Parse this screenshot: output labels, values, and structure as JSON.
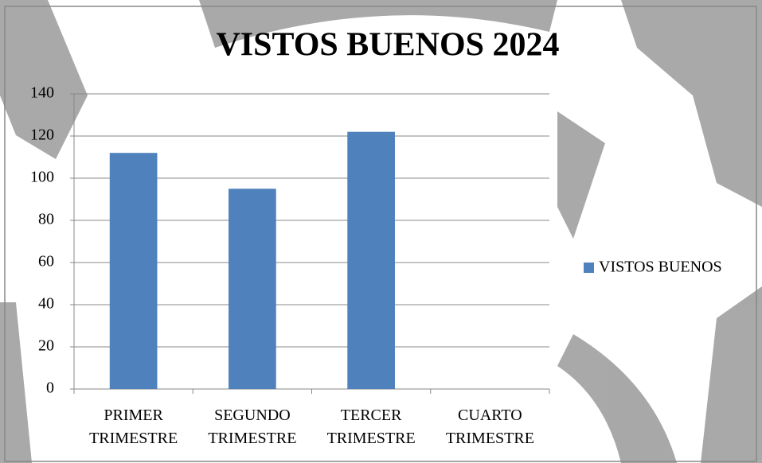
{
  "chart_data": {
    "type": "bar",
    "title": "VISTOS BUENOS 2024",
    "categories": [
      "PRIMER TRIMESTRE",
      "SEGUNDO TRIMESTRE",
      "TERCER TRIMESTRE",
      "CUARTO TRIMESTRE"
    ],
    "series": [
      {
        "name": "VISTOS BUENOS",
        "color": "#4f81bd",
        "values": [
          112,
          95,
          122,
          null
        ]
      }
    ],
    "ylim": [
      0,
      140
    ],
    "yticks": [
      0,
      20,
      40,
      60,
      80,
      100,
      120,
      140
    ],
    "grid": true,
    "legend": "right"
  }
}
